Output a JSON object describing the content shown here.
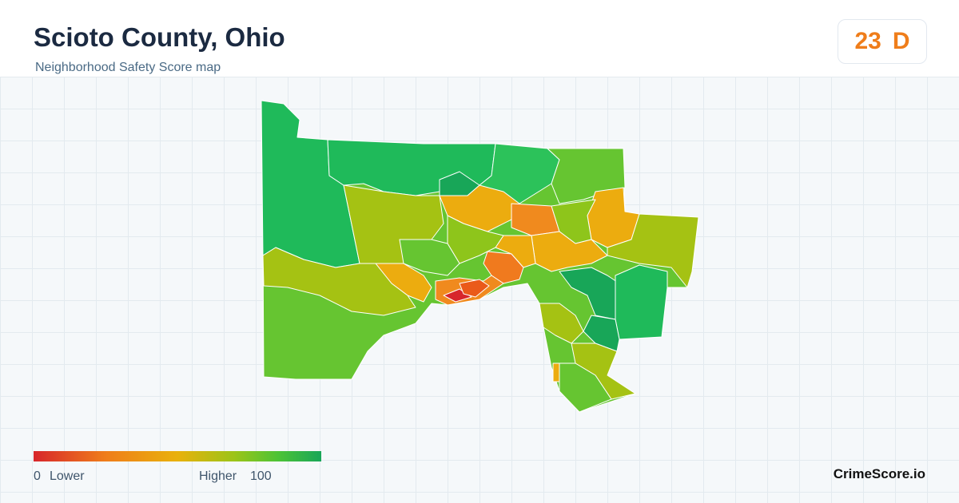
{
  "header": {
    "title": "Scioto County, Ohio",
    "subtitle": "Neighborhood Safety Score map",
    "score": "23",
    "grade": "D"
  },
  "legend": {
    "min": "0",
    "min_label": "Lower",
    "max_label": "Higher",
    "max": "100"
  },
  "footer": {
    "brand": "CrimeScore.io"
  }
}
